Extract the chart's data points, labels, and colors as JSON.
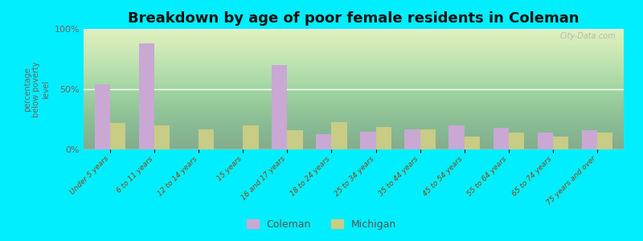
{
  "title": "Breakdown by age of poor female residents in Coleman",
  "ylabel": "percentage\nbelow poverty\nlevel",
  "categories": [
    "Under 5 years",
    "6 to 11 years",
    "12 to 14 years",
    "15 years",
    "16 and 17 years",
    "18 to 24 years",
    "25 to 34 years",
    "35 to 44 years",
    "45 to 54 years",
    "55 to 64 years",
    "65 to 74 years",
    "75 years and over"
  ],
  "coleman_values": [
    54,
    88,
    0,
    0,
    70,
    13,
    15,
    17,
    20,
    18,
    14,
    16
  ],
  "michigan_values": [
    22,
    20,
    17,
    20,
    16,
    23,
    19,
    17,
    11,
    14,
    11,
    14
  ],
  "coleman_color": "#c9a8d4",
  "michigan_color": "#c8cc85",
  "outer_bg": "#00eeff",
  "ylim": [
    0,
    100
  ],
  "yticks": [
    0,
    50,
    100
  ],
  "ytick_labels": [
    "0%",
    "50%",
    "100%"
  ],
  "title_fontsize": 13,
  "legend_labels": [
    "Coleman",
    "Michigan"
  ],
  "watermark": "City-Data.com"
}
